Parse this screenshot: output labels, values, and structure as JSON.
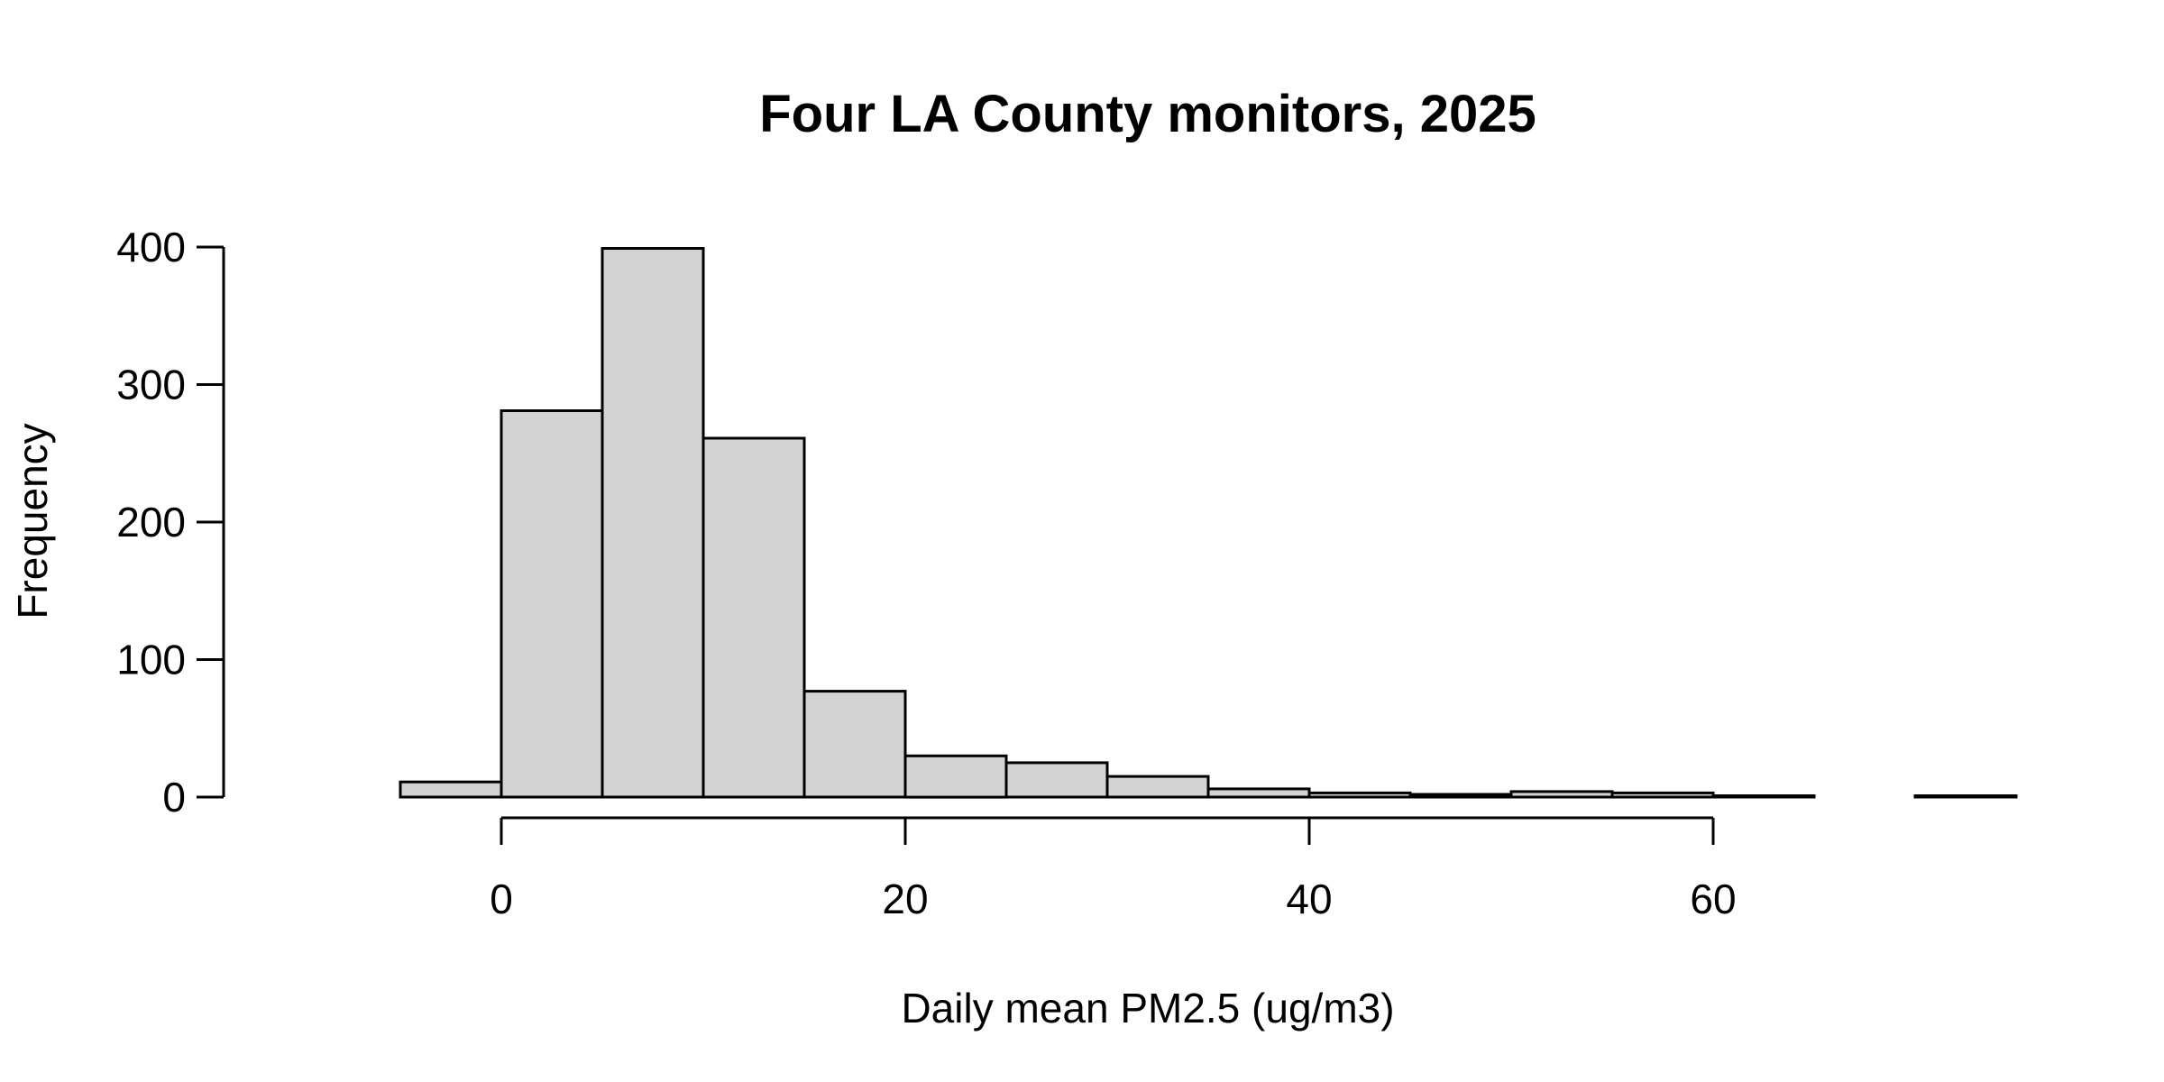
{
  "chart_data": {
    "type": "bar",
    "title": "Four LA County monitors, 2025",
    "xlabel": "Daily mean PM2.5 (ug/m3)",
    "ylabel": "Frequency",
    "bin_width": 5,
    "bin_edges": [
      -5,
      0,
      5,
      10,
      15,
      20,
      25,
      30,
      35,
      40,
      45,
      50,
      55,
      60,
      65,
      70,
      75
    ],
    "values": [
      11,
      281,
      399,
      261,
      77,
      30,
      25,
      15,
      6,
      3,
      2,
      4,
      3,
      1,
      0,
      1
    ],
    "xlim": [
      -5,
      75
    ],
    "ylim": [
      0,
      400
    ],
    "x_ticks": [
      0,
      20,
      40,
      60
    ],
    "y_ticks": [
      0,
      100,
      200,
      300,
      400
    ],
    "x_tick_labels": [
      "0",
      "20",
      "40",
      "60"
    ],
    "y_tick_labels": [
      "0",
      "100",
      "200",
      "300",
      "400"
    ],
    "grid": false,
    "legend": "none",
    "bar_fill": "#d3d3d3",
    "bar_stroke": "#000000"
  }
}
